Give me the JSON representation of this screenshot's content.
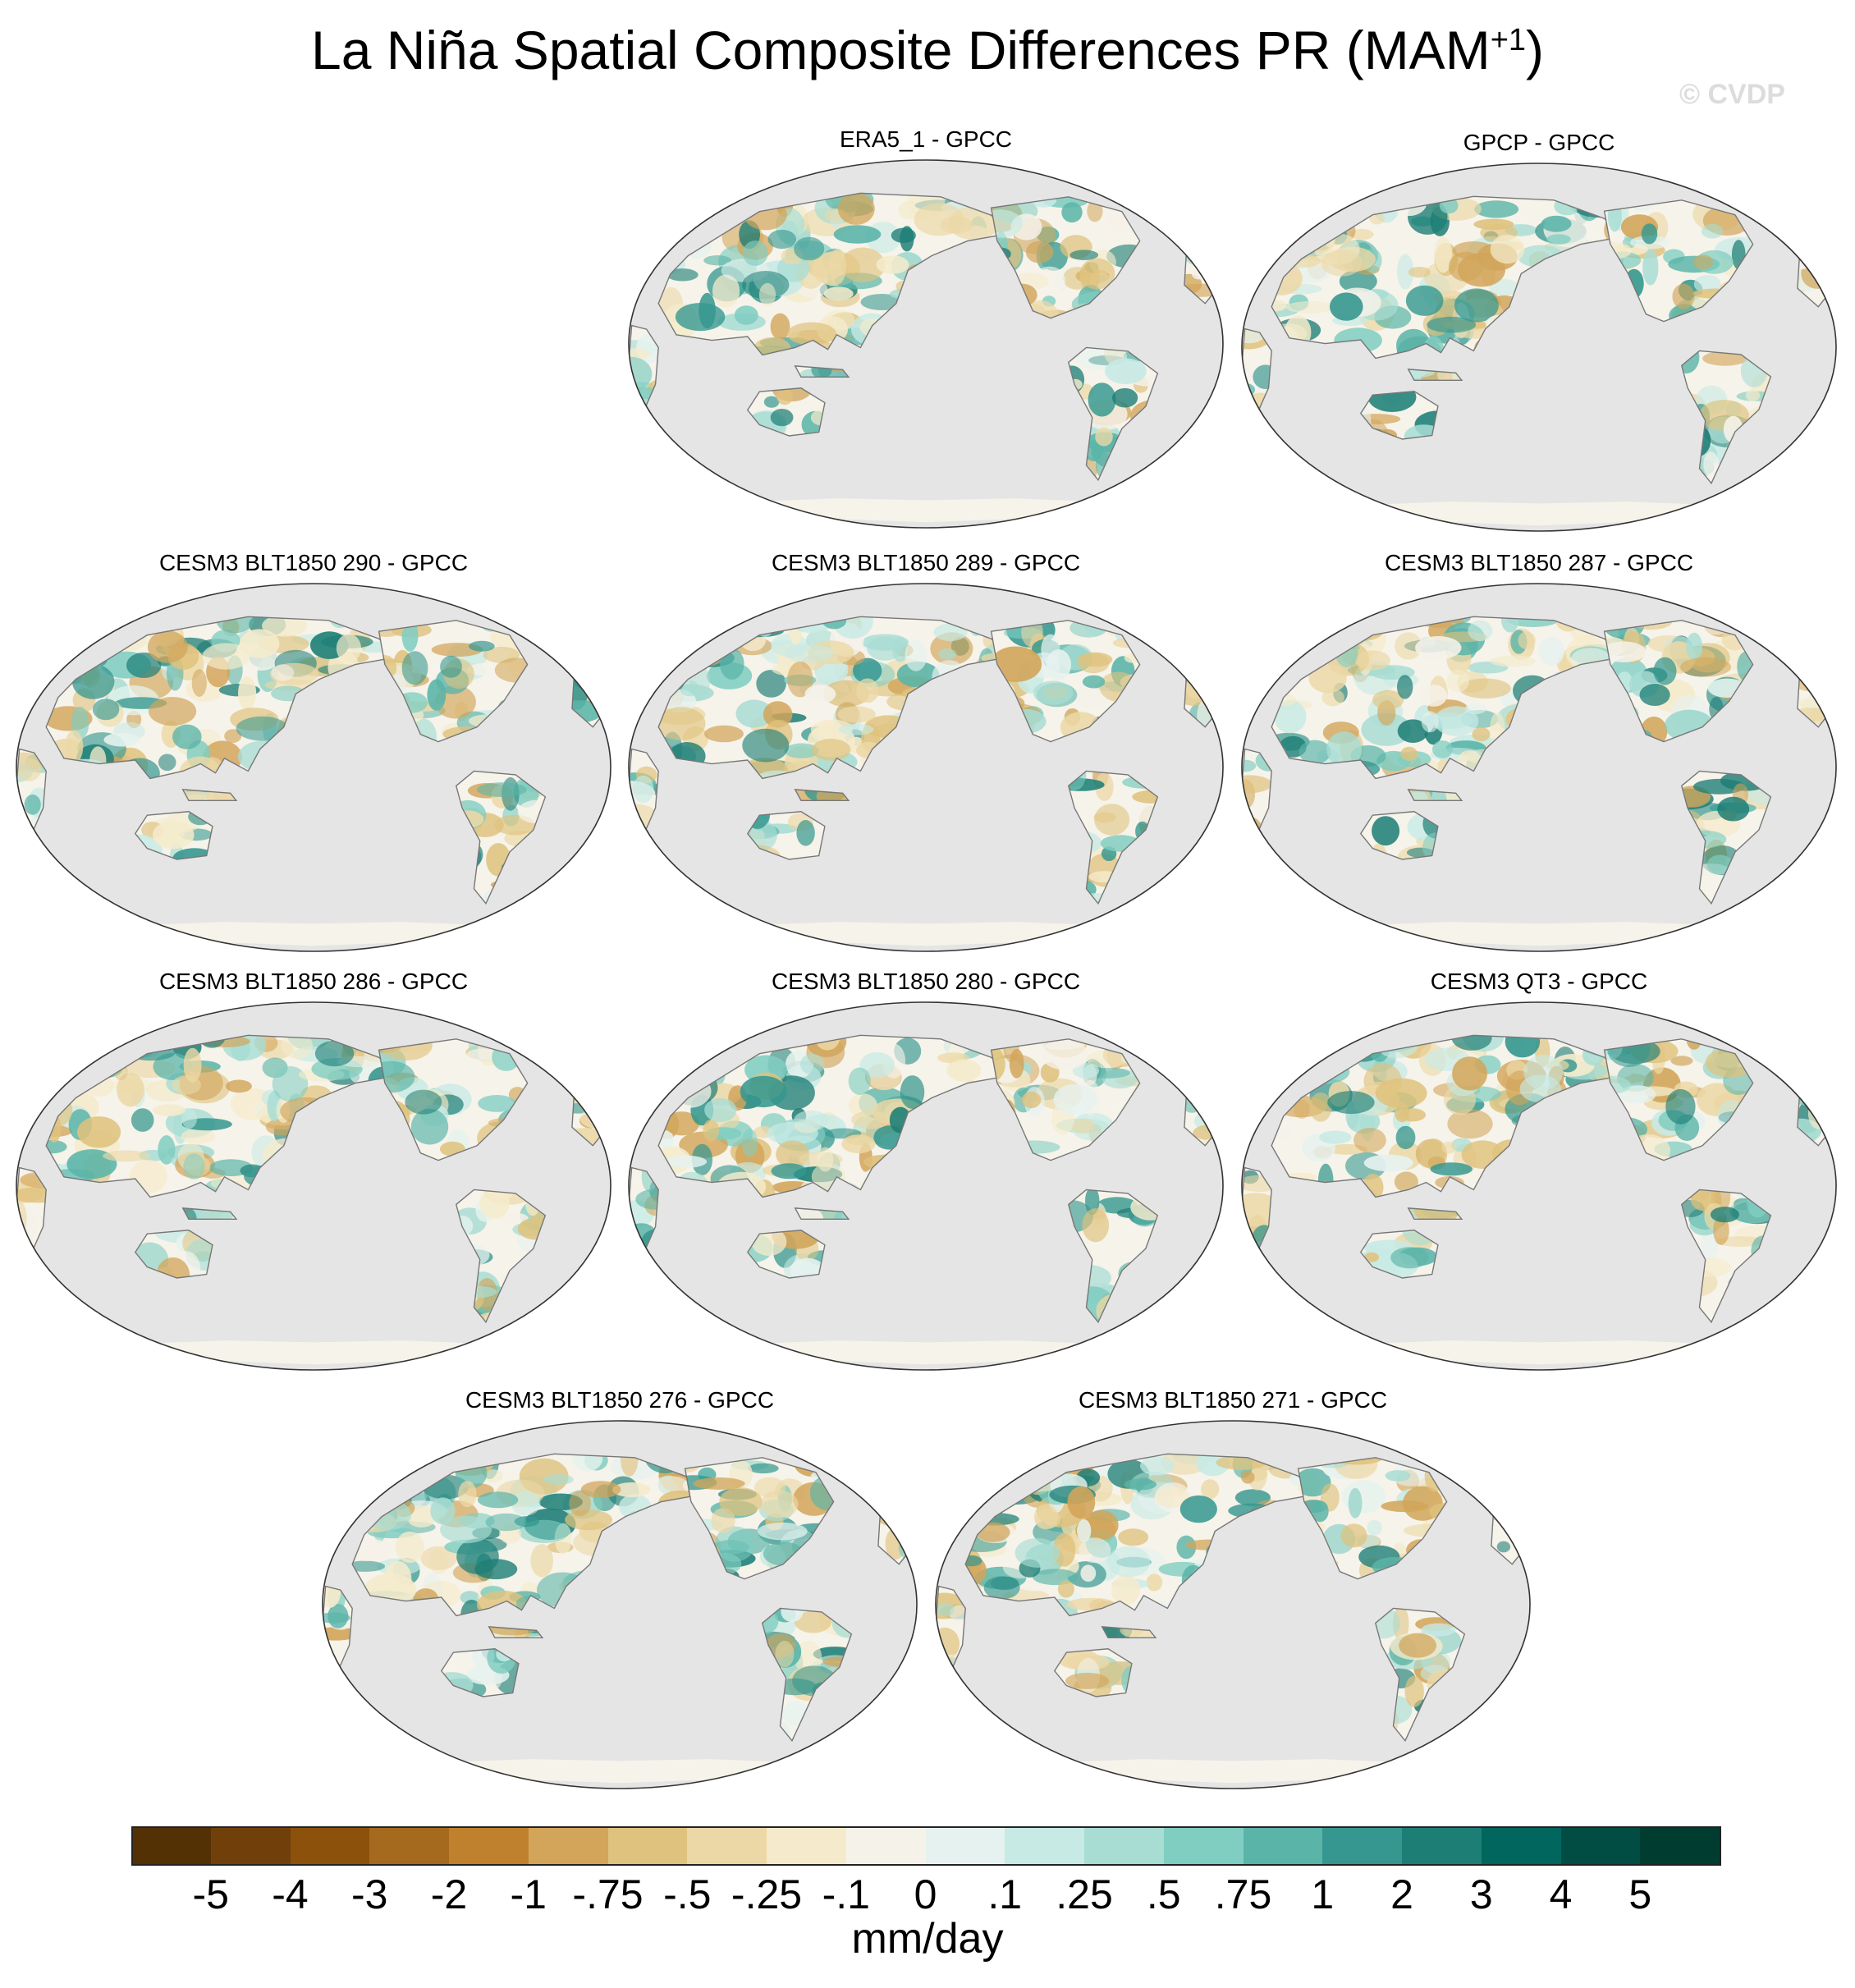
{
  "title": {
    "main": "La Niña Spatial Composite Differences PR (MAM",
    "superscript": "+1",
    "close": ")"
  },
  "watermark": "© CVDP",
  "panels": [
    {
      "label": "ERA5_1 - GPCC"
    },
    {
      "label": "GPCP - GPCC"
    },
    {
      "label": "CESM3 BLT1850 290 - GPCC"
    },
    {
      "label": "CESM3 BLT1850 289 - GPCC"
    },
    {
      "label": "CESM3 BLT1850 287 - GPCC"
    },
    {
      "label": "CESM3 BLT1850 286 - GPCC"
    },
    {
      "label": "CESM3 BLT1850 280 - GPCC"
    },
    {
      "label": "CESM3 QT3 - GPCC"
    },
    {
      "label": "CESM3 BLT1850 276 - GPCC"
    },
    {
      "label": "CESM3 BLT1850 271 - GPCC"
    }
  ],
  "colorbar": {
    "colors": [
      "#543005",
      "#71400a",
      "#8c510a",
      "#a66a1e",
      "#bf812d",
      "#d2a55a",
      "#dfc27d",
      "#ecd8a6",
      "#f5ebcc",
      "#f5f2ea",
      "#e6f2ef",
      "#c7eae5",
      "#a8ddd4",
      "#80cdc1",
      "#5ab4a8",
      "#35978f",
      "#1d7e76",
      "#01665e",
      "#014d44",
      "#003c30"
    ],
    "ticks": [
      "-5",
      "-4",
      "-3",
      "-2",
      "-1",
      "-.75",
      "-.5",
      "-.25",
      "-.1",
      "0",
      ".1",
      ".25",
      ".5",
      ".75",
      "1",
      "2",
      "3",
      "4",
      "5"
    ],
    "units": "mm/day"
  },
  "map_style": {
    "ocean": "#e5e5e5",
    "land_base": "#f6f3ea",
    "coast": "#777777"
  }
}
